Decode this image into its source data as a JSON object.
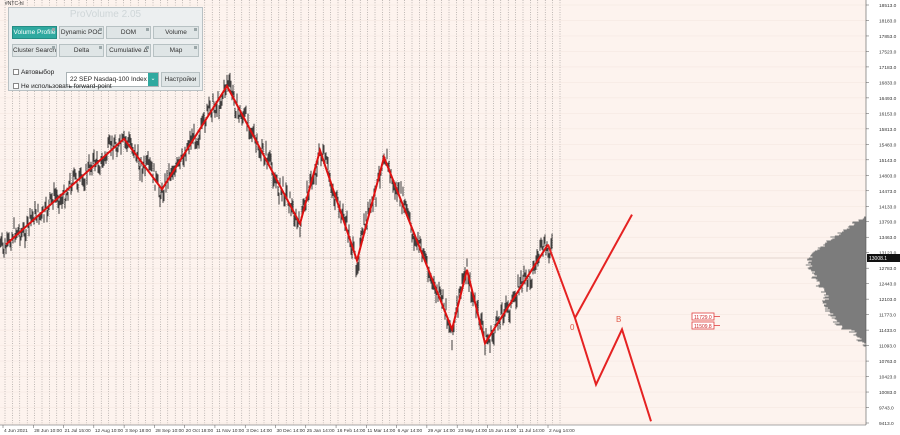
{
  "symbol_label": "#NTC-hl",
  "panel": {
    "title": "ProVolume 2.05",
    "buttons": [
      {
        "label": "Volume Profile",
        "active": true
      },
      {
        "label": "Dynamic POC",
        "active": false
      },
      {
        "label": "DOM",
        "active": false
      },
      {
        "label": "Volume",
        "active": false
      },
      {
        "label": "Cluster Search",
        "active": false
      },
      {
        "label": "Delta",
        "active": false
      },
      {
        "label": "Cumulative Δ",
        "active": false
      },
      {
        "label": "Map",
        "active": false
      }
    ],
    "auto_select_label": "Автовыбор",
    "instrument_select_value": "22 SEP Nasdaq-100 Index",
    "settings_button_label": "Настройки",
    "forward_point_label": "Не использовать forward-point"
  },
  "chart_data": {
    "type": "line",
    "y_axis_labels": [
      "18513.0",
      "18183.0",
      "17853.0",
      "17523.0",
      "17183.0",
      "16833.0",
      "16493.0",
      "16153.0",
      "15813.0",
      "15483.0",
      "15143.0",
      "14803.0",
      "14473.0",
      "14133.0",
      "13793.0",
      "13463.0",
      "13123.0",
      "12783.0",
      "12443.0",
      "12103.0",
      "11773.0",
      "11433.0",
      "11093.0",
      "10763.0",
      "10423.0",
      "10083.0",
      "9743.0",
      "9413.0"
    ],
    "x_axis_labels": [
      "4 Jun 2021",
      "28 Jun 10:00",
      "21 Jul 15:00",
      "12 Aug 10:00",
      "3 Sep 18:00",
      "28 Sep 10:00",
      "20 Oct 18:00",
      "11 Nov 10:00",
      "3 Dec 14:00",
      "30 Dec 14:00",
      "25 Jan 14:00",
      "16 Feb 14:00",
      "11 Mar 14:00",
      "6 Apr 14:00",
      "29 Apr 14:00",
      "23 May 14:00",
      "15 Jun 14:00",
      "11 Jul 14:00",
      "2 Aug 14:00"
    ],
    "price_tag": "13008.1",
    "projection_labels": [
      "0",
      "B"
    ],
    "level_tags": [
      "11729.0",
      "11509.8"
    ],
    "grid": true,
    "colors": {
      "price": "#111111",
      "zigzag": "#dd1111",
      "projection": "#e52222",
      "background": "#fdf3ee",
      "profile": "#7c7c7c",
      "panel_active": "#2fa9a0"
    },
    "zigzag": [
      [
        13300,
        0
      ],
      [
        15600,
        0
      ],
      [
        14500,
        0
      ],
      [
        16750,
        0
      ],
      [
        13750,
        0
      ],
      [
        15350,
        0
      ],
      [
        12950,
        0
      ],
      [
        15200,
        0
      ],
      [
        11450,
        0
      ],
      [
        12750,
        0
      ],
      [
        11150,
        0
      ],
      [
        13300,
        0
      ]
    ],
    "projection": [
      [
        13300,
        0
      ],
      [
        11700,
        0
      ],
      [
        10250,
        0
      ],
      [
        11450,
        0
      ],
      [
        9450,
        0
      ]
    ],
    "projection_branch": [
      [
        11700,
        0
      ],
      [
        13950,
        0
      ]
    ]
  }
}
